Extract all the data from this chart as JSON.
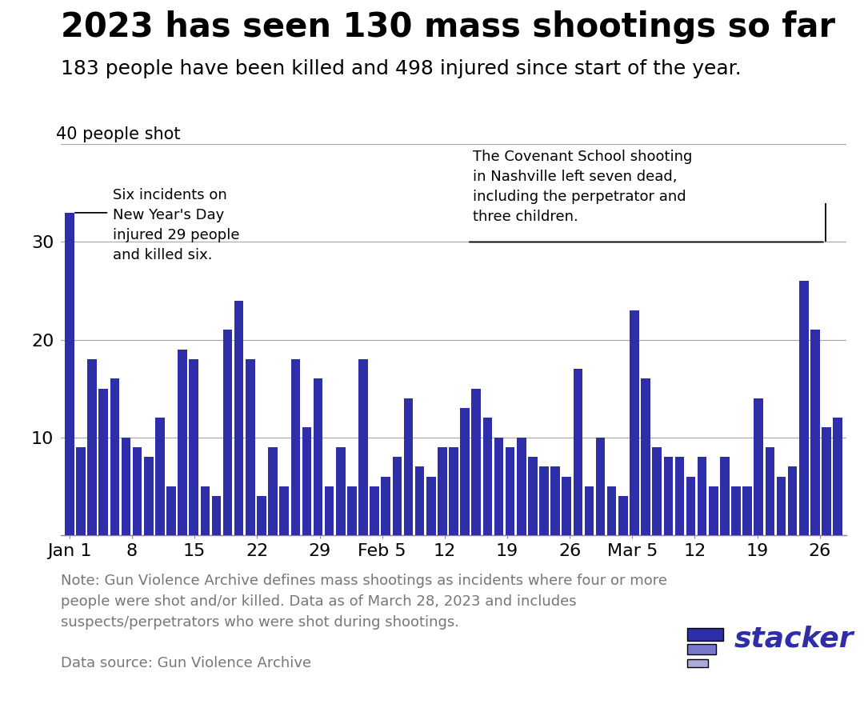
{
  "title": "2023 has seen 130 mass shootings so far",
  "subtitle": "183 people have been killed and 498 injured since start of the year.",
  "ylabel_top": "40 people shot",
  "bar_color": "#2E2EA8",
  "background_color": "#FFFFFF",
  "note_text": "Note: Gun Violence Archive defines mass shootings as incidents where four or more\npeople were shot and/or killed. Data as of March 28, 2023 and includes\nsuspects/perpetrators who were shot during shootings.",
  "data_source": "Data source: Gun Violence Archive",
  "annotation1_text": "Six incidents on\nNew Year's Day\ninjured 29 people\nand killed six.",
  "annotation2_text": "The Covenant School shooting\nin Nashville left seven dead,\nincluding the perpetrator and\nthree children.",
  "bar_values": [
    33,
    9,
    18,
    15,
    16,
    10,
    9,
    8,
    12,
    5,
    19,
    18,
    5,
    4,
    21,
    24,
    18,
    4,
    9,
    5,
    18,
    11,
    16,
    5,
    9,
    5,
    18,
    5,
    6,
    8,
    14,
    7,
    6,
    9,
    9,
    13,
    15,
    12,
    10,
    9,
    10,
    8,
    7,
    7,
    6,
    17,
    5,
    10,
    5,
    4,
    23,
    16,
    9,
    8,
    8,
    6,
    8,
    5,
    8,
    5,
    5,
    14,
    9,
    6,
    7,
    26,
    21,
    11,
    12
  ],
  "xtick_labels": [
    "Jan 1",
    "8",
    "15",
    "22",
    "29",
    "Feb 5",
    "12",
    "19",
    "26",
    "Mar 5",
    "12",
    "19",
    "26"
  ],
  "xtick_days": [
    0,
    7,
    14,
    21,
    28,
    35,
    42,
    49,
    56,
    63,
    70,
    77,
    84
  ],
  "total_days": 86,
  "ylim": [
    0,
    40
  ],
  "yticks": [
    10,
    20,
    30
  ],
  "grid_color": "#AAAAAA",
  "title_fontsize": 30,
  "subtitle_fontsize": 18,
  "tick_fontsize": 16,
  "annot_fontsize": 13,
  "note_fontsize": 13,
  "stacker_color": "#2E2EA8",
  "stacker_color2": "#7777CC",
  "stacker_color3": "#AAAADD"
}
